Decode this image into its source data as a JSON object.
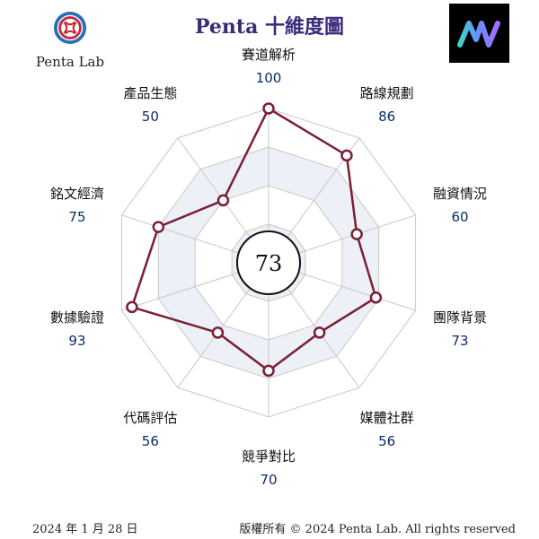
{
  "header": {
    "title": "Penta 十維度圖",
    "brand_text": "Penta Lab"
  },
  "footer": {
    "date": "2024 年 1 月 28 日",
    "copyright": "版權所有 © 2024 Penta Lab. All rights reserved"
  },
  "colors": {
    "series": "#7a1f35",
    "label": "#111111",
    "value": "#0d2b66",
    "grid": "#c8c8c8",
    "title": "#3b2a7a"
  },
  "chart_data": {
    "type": "radar",
    "title": "Penta 十維度圖",
    "center_score": "73",
    "range": [
      0,
      100
    ],
    "rings": 4,
    "categories": [
      "賽道解析",
      "路線規劃",
      "融資情況",
      "團隊背景",
      "媒體社群",
      "競爭對比",
      "代碼評估",
      "數據驗證",
      "銘文經濟",
      "產品生態"
    ],
    "values": [
      100,
      86,
      60,
      73,
      56,
      70,
      56,
      93,
      75,
      50
    ]
  }
}
